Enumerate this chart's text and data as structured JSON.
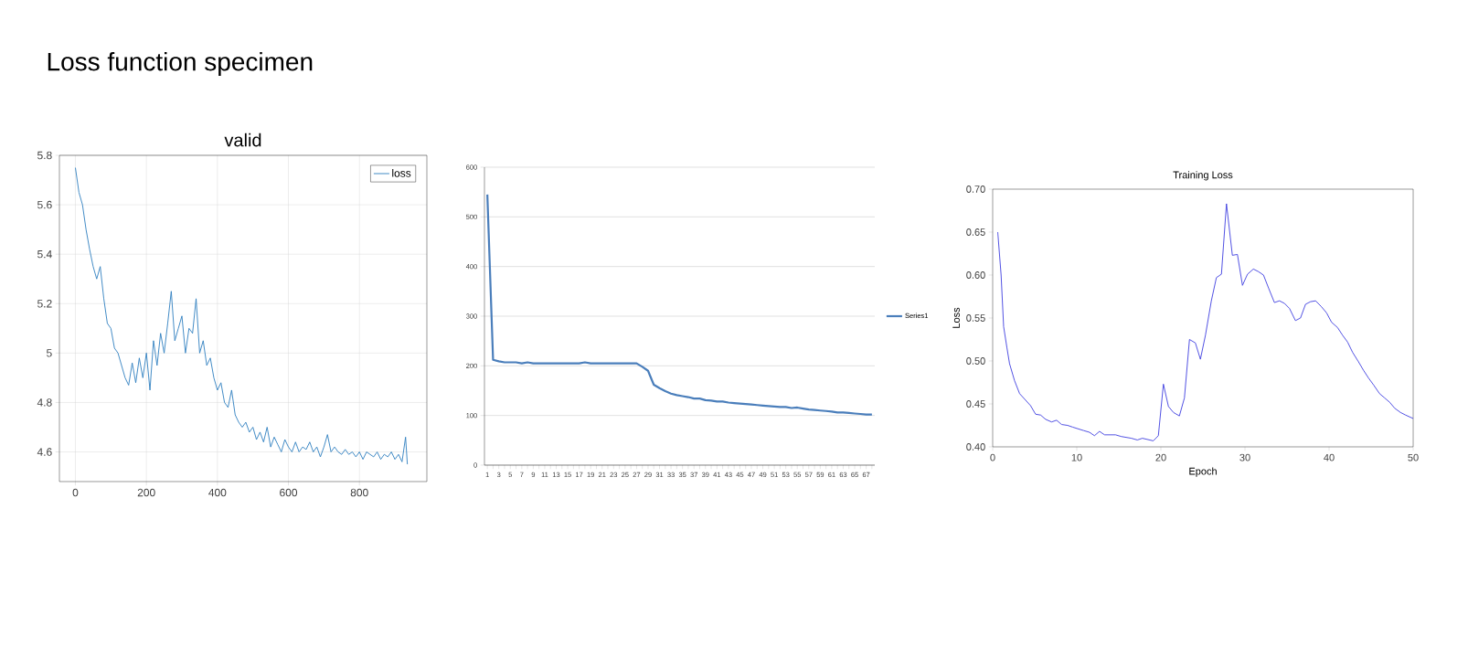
{
  "chart_data": [
    {
      "type": "other",
      "title": "Loss function specimen"
    },
    {
      "type": "line",
      "title": "valid",
      "x": [
        0,
        10,
        20,
        30,
        40,
        50,
        60,
        70,
        80,
        90,
        100,
        110,
        120,
        130,
        140,
        150,
        160,
        170,
        180,
        190,
        200,
        210,
        220,
        230,
        240,
        250,
        260,
        270,
        280,
        290,
        300,
        310,
        320,
        330,
        340,
        350,
        360,
        370,
        380,
        390,
        400,
        410,
        420,
        430,
        440,
        450,
        460,
        470,
        480,
        490,
        500,
        510,
        520,
        530,
        540,
        550,
        560,
        570,
        580,
        590,
        600,
        610,
        620,
        630,
        640,
        650,
        660,
        670,
        680,
        690,
        700,
        710,
        720,
        730,
        740,
        750,
        760,
        770,
        780,
        790,
        800,
        810,
        820,
        830,
        840,
        850,
        860,
        870,
        880,
        890,
        900,
        910,
        920,
        930,
        935
      ],
      "series": [
        {
          "name": "loss",
          "color": "#2f7fc0",
          "values": [
            5.75,
            5.65,
            5.6,
            5.5,
            5.42,
            5.35,
            5.3,
            5.35,
            5.22,
            5.12,
            5.1,
            5.02,
            5.0,
            4.95,
            4.9,
            4.87,
            4.96,
            4.88,
            4.98,
            4.9,
            5.0,
            4.85,
            5.05,
            4.95,
            5.08,
            5.0,
            5.12,
            5.25,
            5.05,
            5.1,
            5.15,
            5.0,
            5.1,
            5.08,
            5.22,
            5.0,
            5.05,
            4.95,
            4.98,
            4.9,
            4.85,
            4.88,
            4.8,
            4.78,
            4.85,
            4.75,
            4.72,
            4.7,
            4.72,
            4.68,
            4.7,
            4.65,
            4.68,
            4.64,
            4.7,
            4.62,
            4.66,
            4.63,
            4.6,
            4.65,
            4.62,
            4.6,
            4.64,
            4.6,
            4.62,
            4.61,
            4.64,
            4.6,
            4.62,
            4.58,
            4.62,
            4.67,
            4.6,
            4.62,
            4.6,
            4.59,
            4.61,
            4.59,
            4.6,
            4.58,
            4.6,
            4.57,
            4.6,
            4.59,
            4.58,
            4.6,
            4.57,
            4.59,
            4.58,
            4.6,
            4.57,
            4.59,
            4.56,
            4.66,
            4.55
          ]
        }
      ],
      "xlim": [
        -45,
        990
      ],
      "ylim": [
        4.48,
        5.8
      ],
      "xticks": [
        0,
        200,
        400,
        600,
        800
      ],
      "yticks": [
        4.6,
        4.8,
        5,
        5.2,
        5.4,
        5.6,
        5.8
      ],
      "grid": true,
      "legend": "top right"
    },
    {
      "type": "line",
      "categories": [
        "1",
        null,
        "3",
        null,
        "5",
        null,
        "7",
        null,
        "9",
        null,
        "11",
        null,
        "13",
        null,
        "15",
        null,
        "17",
        null,
        "19",
        null,
        "21",
        null,
        "23",
        null,
        "25",
        null,
        "27",
        null,
        "29",
        null,
        "31",
        null,
        "33",
        null,
        "35",
        null,
        "37",
        null,
        "39",
        null,
        "41",
        null,
        "43",
        null,
        "45",
        null,
        "47",
        null,
        "49",
        null,
        "51",
        null,
        "53",
        null,
        "55",
        null,
        "57",
        null,
        "59",
        null,
        "61",
        null,
        "63",
        null,
        "65",
        null,
        "67",
        null
      ],
      "series": [
        {
          "name": "Series1",
          "color": "#4a7ebb",
          "values": [
            545,
            212,
            209,
            207,
            207,
            207,
            205,
            207,
            205,
            205,
            205,
            205,
            205,
            205,
            205,
            205,
            205,
            207,
            205,
            205,
            205,
            205,
            205,
            205,
            205,
            205,
            205,
            198,
            190,
            162,
            155,
            149,
            144,
            141,
            139,
            137,
            134,
            134,
            131,
            130,
            128,
            128,
            126,
            125,
            124,
            123,
            122,
            121,
            120,
            119,
            118,
            117,
            117,
            115,
            116,
            114,
            112,
            111,
            110,
            109,
            108,
            106,
            106,
            105,
            104,
            103,
            102,
            102
          ]
        }
      ],
      "ylim": [
        0,
        600
      ],
      "yticks": [
        0,
        100,
        200,
        300,
        400,
        500,
        600
      ],
      "grid": "y",
      "legend": "right"
    },
    {
      "type": "line",
      "title": "Training Loss",
      "xlabel": "Epoch",
      "ylabel": "Loss",
      "color": "#4040e0",
      "x": [
        0.6,
        1.0,
        1.3,
        1.7,
        2,
        2.6,
        3.2,
        4.5,
        5.1,
        5.7,
        6.3,
        7,
        7.6,
        8.2,
        8.9,
        9.5,
        10.8,
        11.5,
        12.1,
        12.7,
        13.3,
        14.6,
        15.3,
        16.5,
        17.2,
        17.8,
        19.1,
        19.7,
        20.3,
        20.9,
        21.5,
        22.2,
        22.8,
        23.4,
        24.1,
        24.7,
        25.3,
        26,
        26.6,
        27.2,
        27.8,
        28.5,
        29.1,
        29.7,
        30.3,
        31,
        31.6,
        32.2,
        32.8,
        33.5,
        34.1,
        34.7,
        35.3,
        36,
        36.6,
        37.2,
        37.8,
        38.4,
        39.1,
        39.7,
        40.3,
        41,
        41.6,
        42.2,
        42.8,
        43.5,
        44.1,
        44.7,
        45.3,
        46,
        46.6,
        47.2,
        47.8,
        48.5,
        49.1,
        50
      ],
      "values": [
        0.65,
        0.6,
        0.54,
        0.515,
        0.497,
        0.477,
        0.462,
        0.448,
        0.438,
        0.437,
        0.432,
        0.429,
        0.431,
        0.426,
        0.425,
        0.423,
        0.419,
        0.417,
        0.413,
        0.418,
        0.414,
        0.414,
        0.412,
        0.41,
        0.408,
        0.41,
        0.407,
        0.413,
        0.473,
        0.447,
        0.44,
        0.436,
        0.457,
        0.525,
        0.521,
        0.502,
        0.53,
        0.57,
        0.597,
        0.601,
        0.683,
        0.623,
        0.624,
        0.588,
        0.601,
        0.607,
        0.604,
        0.6,
        0.585,
        0.568,
        0.57,
        0.567,
        0.561,
        0.547,
        0.55,
        0.566,
        0.569,
        0.57,
        0.563,
        0.556,
        0.545,
        0.539,
        0.53,
        0.522,
        0.51,
        0.499,
        0.489,
        0.48,
        0.472,
        0.462,
        0.457,
        0.452,
        0.445,
        0.44,
        0.437,
        0.433
      ],
      "xlim": [
        0,
        50
      ],
      "ylim": [
        0.4,
        0.7
      ],
      "xticks": [
        0,
        10,
        20,
        30,
        40,
        50
      ],
      "yticks": [
        {
          "value": 0.4,
          "label": "0.40"
        },
        {
          "value": 0.45,
          "label": "0.45"
        },
        {
          "value": 0.5,
          "label": "0.50"
        },
        {
          "value": 0.55,
          "label": "0.55"
        },
        {
          "value": 0.6,
          "label": "0.60"
        },
        {
          "value": 0.65,
          "label": "0.65"
        },
        {
          "value": 0.7,
          "label": "0.70"
        }
      ]
    }
  ]
}
